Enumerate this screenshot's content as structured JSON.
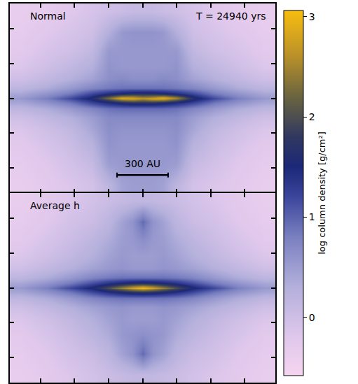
{
  "chart_data": {
    "type": "heatmap",
    "tick_labels": false,
    "annotations": [
      "T = 24940 yrs"
    ],
    "scale_bar": {
      "length": 300,
      "label": "300 AU"
    },
    "colorbar": {
      "title": "log column density [g/cm²]",
      "range": [
        -0.58,
        3.06
      ],
      "ticks": [
        0,
        1,
        2,
        3
      ]
    },
    "xlim": [
      -780,
      780
    ],
    "ylim": [
      -545,
      545
    ],
    "xticks": [
      -600,
      -400,
      -200,
      0,
      200,
      400,
      600
    ],
    "yticks": [
      -400,
      -200,
      0,
      200,
      400
    ],
    "x": [
      -720,
      -560,
      -420,
      -300,
      -200,
      -120,
      -60,
      0,
      60,
      120,
      200,
      300,
      420,
      560,
      720
    ],
    "y": [
      -500,
      -380,
      -270,
      -180,
      -110,
      -60,
      -25,
      -8,
      0,
      8,
      25,
      60,
      110,
      180,
      270,
      380,
      500
    ],
    "panels": [
      {
        "title": "Normal",
        "z": [
          [
            -0.35,
            -0.25,
            -0.15,
            -0.05,
            0.2,
            0.45,
            0.5,
            0.5,
            0.5,
            0.45,
            0.2,
            -0.05,
            -0.15,
            -0.25,
            -0.35
          ],
          [
            -0.3,
            -0.2,
            -0.05,
            0.1,
            0.5,
            0.55,
            0.55,
            0.55,
            0.55,
            0.55,
            0.5,
            0.1,
            -0.05,
            -0.2,
            -0.3
          ],
          [
            -0.25,
            -0.1,
            0.05,
            0.25,
            0.6,
            0.55,
            0.55,
            0.55,
            0.55,
            0.55,
            0.6,
            0.25,
            0.05,
            -0.1,
            -0.25
          ],
          [
            -0.15,
            0.0,
            0.15,
            0.4,
            0.65,
            0.6,
            0.6,
            0.6,
            0.6,
            0.6,
            0.65,
            0.4,
            0.15,
            0.0,
            -0.15
          ],
          [
            0.0,
            0.15,
            0.3,
            0.5,
            0.7,
            0.7,
            0.7,
            0.7,
            0.7,
            0.7,
            0.7,
            0.5,
            0.3,
            0.15,
            0.0
          ],
          [
            0.2,
            0.35,
            0.55,
            0.75,
            0.9,
            0.95,
            0.95,
            0.95,
            0.95,
            0.95,
            0.9,
            0.75,
            0.55,
            0.35,
            0.2
          ],
          [
            0.4,
            0.6,
            0.85,
            1.2,
            1.45,
            1.6,
            1.7,
            1.7,
            1.7,
            1.6,
            1.45,
            1.2,
            0.85,
            0.6,
            0.4
          ],
          [
            0.5,
            0.75,
            1.1,
            1.5,
            2.0,
            2.5,
            2.6,
            2.4,
            2.6,
            2.6,
            2.2,
            1.55,
            1.1,
            0.75,
            0.5
          ],
          [
            0.55,
            0.8,
            1.2,
            1.6,
            2.3,
            2.9,
            2.8,
            2.7,
            2.8,
            2.9,
            2.5,
            1.65,
            1.2,
            0.8,
            0.55
          ],
          [
            0.5,
            0.75,
            1.1,
            1.5,
            2.1,
            2.6,
            2.6,
            2.4,
            2.5,
            2.7,
            2.3,
            1.55,
            1.1,
            0.75,
            0.5
          ],
          [
            0.4,
            0.6,
            0.85,
            1.2,
            1.45,
            1.6,
            1.7,
            1.7,
            1.7,
            1.6,
            1.45,
            1.2,
            0.85,
            0.6,
            0.4
          ],
          [
            0.2,
            0.35,
            0.55,
            0.75,
            0.85,
            0.9,
            0.9,
            0.9,
            0.9,
            0.9,
            0.85,
            0.75,
            0.55,
            0.35,
            0.2
          ],
          [
            0.0,
            0.15,
            0.3,
            0.45,
            0.65,
            0.7,
            0.65,
            0.65,
            0.65,
            0.7,
            0.65,
            0.45,
            0.3,
            0.15,
            0.0
          ],
          [
            -0.15,
            0.0,
            0.15,
            0.3,
            0.6,
            0.55,
            0.55,
            0.55,
            0.55,
            0.55,
            0.6,
            0.3,
            0.15,
            0.0,
            -0.15
          ],
          [
            -0.25,
            -0.1,
            0.0,
            0.15,
            0.55,
            0.55,
            0.55,
            0.55,
            0.55,
            0.55,
            0.55,
            0.15,
            0.0,
            -0.1,
            -0.25
          ],
          [
            -0.3,
            -0.2,
            -0.1,
            0.0,
            0.3,
            0.55,
            0.6,
            0.6,
            0.6,
            0.55,
            0.3,
            0.0,
            -0.1,
            -0.2,
            -0.3
          ],
          [
            -0.35,
            -0.3,
            -0.2,
            -0.1,
            0.0,
            0.05,
            0.1,
            0.1,
            0.1,
            0.05,
            0.0,
            -0.1,
            -0.2,
            -0.3,
            -0.35
          ]
        ]
      },
      {
        "title": "Average h",
        "z": [
          [
            -0.35,
            -0.25,
            -0.15,
            -0.05,
            0.05,
            0.1,
            0.15,
            0.15,
            0.15,
            0.1,
            0.05,
            -0.05,
            -0.15,
            -0.25,
            -0.35
          ],
          [
            -0.3,
            -0.2,
            -0.05,
            0.05,
            0.2,
            0.45,
            0.6,
            0.95,
            0.6,
            0.45,
            0.2,
            0.05,
            -0.05,
            -0.2,
            -0.3
          ],
          [
            -0.25,
            -0.1,
            0.05,
            0.2,
            0.35,
            0.55,
            0.6,
            0.65,
            0.6,
            0.55,
            0.35,
            0.2,
            0.05,
            -0.1,
            -0.25
          ],
          [
            -0.15,
            0.0,
            0.15,
            0.3,
            0.45,
            0.55,
            0.5,
            0.5,
            0.5,
            0.55,
            0.45,
            0.3,
            0.15,
            0.0,
            -0.15
          ],
          [
            0.0,
            0.15,
            0.3,
            0.45,
            0.55,
            0.6,
            0.55,
            0.55,
            0.55,
            0.6,
            0.55,
            0.45,
            0.3,
            0.15,
            0.0
          ],
          [
            0.2,
            0.35,
            0.55,
            0.75,
            0.85,
            0.9,
            0.9,
            0.9,
            0.9,
            0.9,
            0.85,
            0.75,
            0.55,
            0.35,
            0.2
          ],
          [
            0.4,
            0.6,
            0.85,
            1.15,
            1.4,
            1.55,
            1.65,
            1.7,
            1.65,
            1.55,
            1.4,
            1.15,
            0.85,
            0.6,
            0.4
          ],
          [
            0.5,
            0.75,
            1.1,
            1.45,
            1.85,
            2.2,
            2.5,
            2.7,
            2.5,
            2.2,
            1.85,
            1.45,
            1.1,
            0.75,
            0.5
          ],
          [
            0.55,
            0.8,
            1.2,
            1.55,
            2.0,
            2.45,
            2.75,
            3.0,
            2.75,
            2.45,
            2.0,
            1.55,
            1.2,
            0.8,
            0.55
          ],
          [
            0.5,
            0.75,
            1.1,
            1.45,
            1.85,
            2.2,
            2.5,
            2.7,
            2.5,
            2.2,
            1.85,
            1.45,
            1.1,
            0.75,
            0.5
          ],
          [
            0.4,
            0.6,
            0.85,
            1.15,
            1.4,
            1.55,
            1.65,
            1.7,
            1.65,
            1.55,
            1.4,
            1.15,
            0.85,
            0.6,
            0.4
          ],
          [
            0.2,
            0.35,
            0.55,
            0.75,
            0.85,
            0.9,
            0.9,
            0.9,
            0.9,
            0.9,
            0.85,
            0.75,
            0.55,
            0.35,
            0.2
          ],
          [
            0.0,
            0.15,
            0.3,
            0.45,
            0.55,
            0.6,
            0.55,
            0.55,
            0.55,
            0.6,
            0.55,
            0.45,
            0.3,
            0.15,
            0.0
          ],
          [
            -0.15,
            0.0,
            0.15,
            0.3,
            0.45,
            0.55,
            0.5,
            0.5,
            0.5,
            0.55,
            0.45,
            0.3,
            0.15,
            0.0,
            -0.15
          ],
          [
            -0.25,
            -0.1,
            0.05,
            0.2,
            0.35,
            0.5,
            0.55,
            0.65,
            0.55,
            0.5,
            0.35,
            0.2,
            0.05,
            -0.1,
            -0.25
          ],
          [
            -0.3,
            -0.2,
            -0.05,
            0.05,
            0.2,
            0.45,
            0.6,
            0.95,
            0.6,
            0.45,
            0.2,
            0.05,
            -0.05,
            -0.2,
            -0.3
          ],
          [
            -0.35,
            -0.25,
            -0.15,
            -0.05,
            0.05,
            0.1,
            0.15,
            0.15,
            0.15,
            0.1,
            0.05,
            -0.05,
            -0.15,
            -0.25,
            -0.35
          ]
        ]
      }
    ]
  }
}
